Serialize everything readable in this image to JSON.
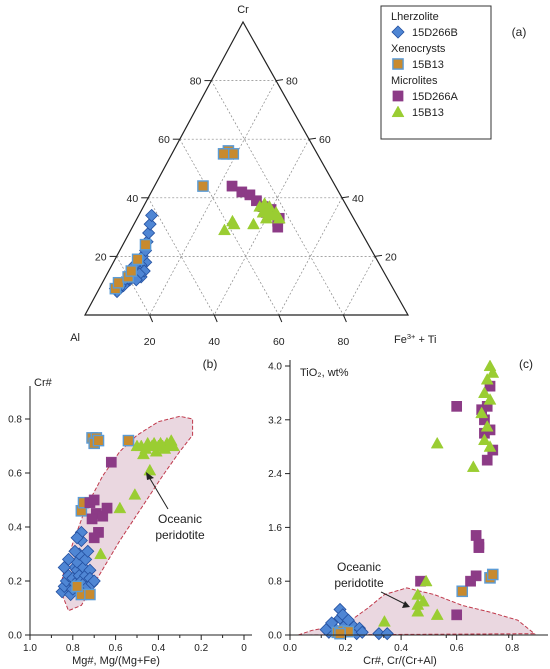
{
  "colors": {
    "lherzolite": "#4f86d4",
    "lherzolite_edge": "#2450a0",
    "xenocryst": "#c88a2e",
    "xenocryst_edge": "#5b9bd5",
    "microlite_a": "#8c3b86",
    "microlite_b": "#9acd32",
    "field_fill": "#ead7e0",
    "field_edge": "#c0394b",
    "grid": "#888888"
  },
  "legend": {
    "groups": [
      {
        "title": "Lherzolite",
        "entries": [
          {
            "label": "15D266B",
            "marker": "diamond",
            "style": "lherzolite"
          }
        ]
      },
      {
        "title": "Xenocrysts",
        "entries": [
          {
            "label": "15B13",
            "marker": "square",
            "style": "xenocryst"
          }
        ]
      },
      {
        "title": "Microlites",
        "entries": [
          {
            "label": "15D266A",
            "marker": "square",
            "style": "microlite_a"
          },
          {
            "label": "15B13",
            "marker": "triangle",
            "style": "microlite_b"
          }
        ]
      }
    ]
  },
  "chart_data": [
    {
      "id": "a",
      "panel_label": "(a)",
      "type": "scatter",
      "subtype": "ternary",
      "vertices": {
        "top": "Cr",
        "left": "Al",
        "right_base": "Fe",
        "right_sup": "3+",
        "right_tail": " + Ti"
      },
      "ticks": {
        "left_edge": [
          "20",
          "40",
          "60",
          "80"
        ],
        "right_edge": [
          "80",
          "60",
          "40",
          "20"
        ],
        "bottom_edge": [
          "20",
          "40",
          "60",
          "80"
        ]
      },
      "note": "points given as [Cr, Al] percent; Fe3+ + Ti = 100 - Cr - Al",
      "series": [
        {
          "name": "15D266B",
          "style": "lherzolite",
          "marker": "diamond",
          "points": [
            [
              18,
              72
            ],
            [
              17,
              74
            ],
            [
              16,
              75
            ],
            [
              15,
              76
            ],
            [
              14,
              77
            ],
            [
              13,
              78
            ],
            [
              15,
              77
            ],
            [
              16,
              76
            ],
            [
              17,
              76
            ],
            [
              12,
              80
            ],
            [
              13,
              79
            ],
            [
              14,
              79
            ],
            [
              11,
              82
            ],
            [
              12,
              81
            ],
            [
              10,
              83
            ],
            [
              11,
              83
            ],
            [
              10,
              84
            ],
            [
              9,
              85
            ],
            [
              8,
              86
            ],
            [
              9,
              86
            ],
            [
              20,
              72
            ],
            [
              22,
              70
            ],
            [
              25,
              68
            ],
            [
              28,
              66
            ],
            [
              31,
              64
            ],
            [
              34,
              62
            ],
            [
              13,
              76
            ],
            [
              15,
              74
            ],
            [
              14,
              76
            ],
            [
              12,
              78
            ]
          ]
        },
        {
          "name": "15B13",
          "style": "xenocryst",
          "marker": "square",
          "points": [
            [
              9,
              86
            ],
            [
              11,
              84
            ],
            [
              13,
              80
            ],
            [
              15,
              78
            ],
            [
              19,
              74
            ],
            [
              24,
              69
            ],
            [
              44,
              41
            ],
            [
              55,
              28
            ],
            [
              56,
              27
            ],
            [
              55,
              26
            ],
            [
              55,
              29
            ]
          ]
        },
        {
          "name": "15D266A",
          "style": "microlite_a",
          "marker": "square",
          "points": [
            [
              44,
              32
            ],
            [
              42,
              30
            ],
            [
              41,
              28
            ],
            [
              37,
              26
            ],
            [
              39,
              27
            ],
            [
              35,
              26
            ],
            [
              36,
              24
            ],
            [
              32,
              24
            ],
            [
              33,
              23
            ],
            [
              30,
              25
            ]
          ]
        },
        {
          "name": "15B13",
          "style": "microlite_b",
          "marker": "triangle",
          "points": [
            [
              32,
              38
            ],
            [
              29,
              42
            ],
            [
              31,
              38
            ],
            [
              37,
              27
            ],
            [
              38,
              25
            ],
            [
              36,
              25
            ],
            [
              35,
              23
            ],
            [
              35,
              27
            ],
            [
              34,
              23
            ],
            [
              37,
              24
            ],
            [
              34,
              24
            ],
            [
              33,
              23
            ],
            [
              33,
              27
            ],
            [
              31,
              32
            ],
            [
              36,
              25
            ],
            [
              34,
              26
            ],
            [
              35,
              25
            ]
          ]
        }
      ]
    },
    {
      "id": "b",
      "panel_label": "(b)",
      "type": "scatter",
      "ylabel": "Cr#",
      "xlabel": "Mg#, Mg/(Mg+Fe)",
      "xlim": [
        1.0,
        0.0
      ],
      "ylim": [
        0.0,
        0.9
      ],
      "xticks": [
        "1.0",
        "0.8",
        "0.6",
        "0.4",
        "0.2",
        "0"
      ],
      "yticks": [
        "0.0",
        "0.2",
        "0.4",
        "0.6",
        "0.8"
      ],
      "field_label": [
        "Oceanic",
        "peridotite"
      ],
      "field_polygon": [
        [
          0.86,
          0.17
        ],
        [
          0.82,
          0.09
        ],
        [
          0.76,
          0.11
        ],
        [
          0.7,
          0.19
        ],
        [
          0.58,
          0.35
        ],
        [
          0.48,
          0.47
        ],
        [
          0.38,
          0.59
        ],
        [
          0.3,
          0.68
        ],
        [
          0.24,
          0.74
        ],
        [
          0.24,
          0.8
        ],
        [
          0.3,
          0.81
        ],
        [
          0.4,
          0.79
        ],
        [
          0.5,
          0.74
        ],
        [
          0.58,
          0.68
        ],
        [
          0.66,
          0.59
        ],
        [
          0.74,
          0.47
        ],
        [
          0.8,
          0.34
        ],
        [
          0.84,
          0.24
        ]
      ],
      "series": [
        {
          "name": "15D266B",
          "style": "lherzolite",
          "marker": "diamond",
          "points": [
            [
              0.85,
              0.16
            ],
            [
              0.84,
              0.18
            ],
            [
              0.83,
              0.2
            ],
            [
              0.82,
              0.22
            ],
            [
              0.81,
              0.15
            ],
            [
              0.8,
              0.17
            ],
            [
              0.8,
              0.21
            ],
            [
              0.79,
              0.25
            ],
            [
              0.79,
              0.19
            ],
            [
              0.78,
              0.24
            ],
            [
              0.78,
              0.27
            ],
            [
              0.77,
              0.22
            ],
            [
              0.77,
              0.3
            ],
            [
              0.76,
              0.2
            ],
            [
              0.76,
              0.35
            ],
            [
              0.75,
              0.25
            ],
            [
              0.75,
              0.19
            ],
            [
              0.74,
              0.28
            ],
            [
              0.74,
              0.22
            ],
            [
              0.73,
              0.18
            ],
            [
              0.73,
              0.31
            ],
            [
              0.72,
              0.24
            ],
            [
              0.72,
              0.21
            ],
            [
              0.71,
              0.19
            ],
            [
              0.7,
              0.2
            ],
            [
              0.76,
              0.38
            ],
            [
              0.79,
              0.31
            ],
            [
              0.82,
              0.28
            ],
            [
              0.78,
              0.36
            ],
            [
              0.84,
              0.25
            ]
          ]
        },
        {
          "name": "15B13",
          "style": "xenocryst",
          "marker": "square",
          "points": [
            [
              0.71,
              0.73
            ],
            [
              0.69,
              0.73
            ],
            [
              0.7,
              0.71
            ],
            [
              0.68,
              0.72
            ],
            [
              0.54,
              0.72
            ],
            [
              0.76,
              0.46
            ],
            [
              0.75,
              0.49
            ],
            [
              0.76,
              0.15
            ],
            [
              0.72,
              0.15
            ],
            [
              0.78,
              0.18
            ]
          ]
        },
        {
          "name": "15D266A",
          "style": "microlite_a",
          "marker": "square",
          "points": [
            [
              0.72,
              0.49
            ],
            [
              0.7,
              0.5
            ],
            [
              0.69,
              0.45
            ],
            [
              0.71,
              0.43
            ],
            [
              0.66,
              0.44
            ],
            [
              0.68,
              0.38
            ],
            [
              0.7,
              0.36
            ],
            [
              0.64,
              0.47
            ],
            [
              0.62,
              0.64
            ]
          ]
        },
        {
          "name": "15B13",
          "style": "microlite_b",
          "marker": "triangle",
          "points": [
            [
              0.5,
              0.7
            ],
            [
              0.48,
              0.7
            ],
            [
              0.46,
              0.69
            ],
            [
              0.45,
              0.71
            ],
            [
              0.43,
              0.7
            ],
            [
              0.42,
              0.71
            ],
            [
              0.41,
              0.68
            ],
            [
              0.4,
              0.7
            ],
            [
              0.39,
              0.71
            ],
            [
              0.38,
              0.7
            ],
            [
              0.37,
              0.69
            ],
            [
              0.36,
              0.71
            ],
            [
              0.35,
              0.7
            ],
            [
              0.34,
              0.72
            ],
            [
              0.33,
              0.7
            ],
            [
              0.44,
              0.61
            ],
            [
              0.51,
              0.52
            ],
            [
              0.58,
              0.47
            ],
            [
              0.67,
              0.3
            ],
            [
              0.47,
              0.67
            ]
          ]
        }
      ]
    },
    {
      "id": "c",
      "panel_label": "(c)",
      "type": "scatter",
      "ylabel": "TiO₂, wt%",
      "xlabel": "Cr#, Cr/(Cr+Al)",
      "xlim": [
        0.0,
        0.9
      ],
      "ylim": [
        0.0,
        4.0
      ],
      "xticks": [
        "0.0",
        "0.2",
        "0.4",
        "0.6",
        "0.8"
      ],
      "yticks": [
        "0.0",
        "0.8",
        "1.6",
        "2.4",
        "3.2",
        "4.0"
      ],
      "field_label": [
        "Oceanic",
        "peridotite"
      ],
      "field_polygon": [
        [
          0.03,
          0.0
        ],
        [
          0.08,
          0.07
        ],
        [
          0.2,
          0.16
        ],
        [
          0.28,
          0.4
        ],
        [
          0.34,
          0.6
        ],
        [
          0.42,
          0.7
        ],
        [
          0.52,
          0.6
        ],
        [
          0.62,
          0.44
        ],
        [
          0.72,
          0.34
        ],
        [
          0.82,
          0.22
        ],
        [
          0.88,
          0.02
        ]
      ],
      "series": [
        {
          "name": "15D266B",
          "style": "lherzolite",
          "marker": "diamond",
          "points": [
            [
              0.14,
              0.04
            ],
            [
              0.16,
              0.1
            ],
            [
              0.17,
              0.03
            ],
            [
              0.18,
              0.25
            ],
            [
              0.18,
              0.38
            ],
            [
              0.19,
              0.3
            ],
            [
              0.2,
              0.15
            ],
            [
              0.2,
              0.05
            ],
            [
              0.21,
              0.22
            ],
            [
              0.22,
              0.08
            ],
            [
              0.23,
              0.12
            ],
            [
              0.24,
              0.02
            ],
            [
              0.25,
              0.1
            ],
            [
              0.26,
              0.04
            ],
            [
              0.13,
              0.08
            ],
            [
              0.15,
              0.18
            ],
            [
              0.32,
              0.02
            ],
            [
              0.35,
              0.02
            ]
          ]
        },
        {
          "name": "15B13",
          "style": "xenocryst",
          "marker": "square",
          "points": [
            [
              0.17,
              0.04
            ],
            [
              0.19,
              0.06
            ],
            [
              0.21,
              0.05
            ],
            [
              0.18,
              0.02
            ],
            [
              0.62,
              0.65
            ],
            [
              0.72,
              0.85
            ],
            [
              0.73,
              0.9
            ]
          ]
        },
        {
          "name": "15D266A",
          "style": "microlite_a",
          "marker": "square",
          "points": [
            [
              0.47,
              0.8
            ],
            [
              0.67,
              0.88
            ],
            [
              0.67,
              1.48
            ],
            [
              0.68,
              1.35
            ],
            [
              0.68,
              1.3
            ],
            [
              0.7,
              3.0
            ],
            [
              0.7,
              3.2
            ],
            [
              0.71,
              2.6
            ],
            [
              0.71,
              3.4
            ],
            [
              0.72,
              3.7
            ],
            [
              0.72,
              3.05
            ],
            [
              0.73,
              2.75
            ],
            [
              0.69,
              3.35
            ],
            [
              0.6,
              3.4
            ],
            [
              0.6,
              0.3
            ],
            [
              0.65,
              0.8
            ]
          ]
        },
        {
          "name": "15B13",
          "style": "microlite_b",
          "marker": "triangle",
          "points": [
            [
              0.53,
              2.85
            ],
            [
              0.66,
              2.5
            ],
            [
              0.7,
              2.9
            ],
            [
              0.71,
              3.1
            ],
            [
              0.72,
              3.5
            ],
            [
              0.72,
              4.0
            ],
            [
              0.7,
              3.6
            ],
            [
              0.71,
              3.8
            ],
            [
              0.69,
              3.3
            ],
            [
              0.72,
              2.8
            ],
            [
              0.73,
              3.9
            ],
            [
              0.49,
              0.8
            ],
            [
              0.46,
              0.6
            ],
            [
              0.46,
              0.45
            ],
            [
              0.46,
              0.35
            ],
            [
              0.53,
              0.3
            ],
            [
              0.34,
              0.2
            ],
            [
              0.48,
              0.5
            ]
          ]
        }
      ]
    }
  ]
}
